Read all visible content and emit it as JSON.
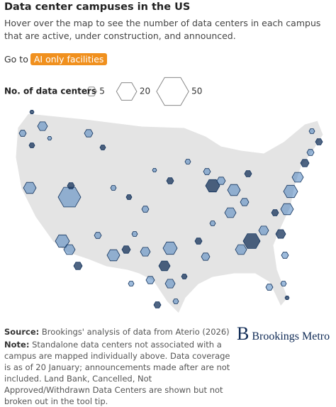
{
  "header": {
    "title": "Data center campuses in the US",
    "subtitle": "Hover over the map to see the number of data centers in each campus that are active, under construction, and announced."
  },
  "navigation": {
    "prefix": "Go to",
    "button": "AI only facilities"
  },
  "legend": {
    "title": "No. of data centers",
    "sizes": [
      5,
      20,
      50
    ]
  },
  "footer": {
    "source_label": "Source:",
    "source": "Brookings' analysis of data from Aterio (2026)",
    "note_label": "Note:",
    "note": "Standalone data centers not associated with a campus are mapped individually above. Data coverage is as of 20 January; announcements made after are not included. Land Bank, Cancelled, Not Approved/Withdrawn Data Centers are shown but not broken out in the tool tip."
  },
  "logo": {
    "mark": "B",
    "text": "Brookings Metro"
  }
}
